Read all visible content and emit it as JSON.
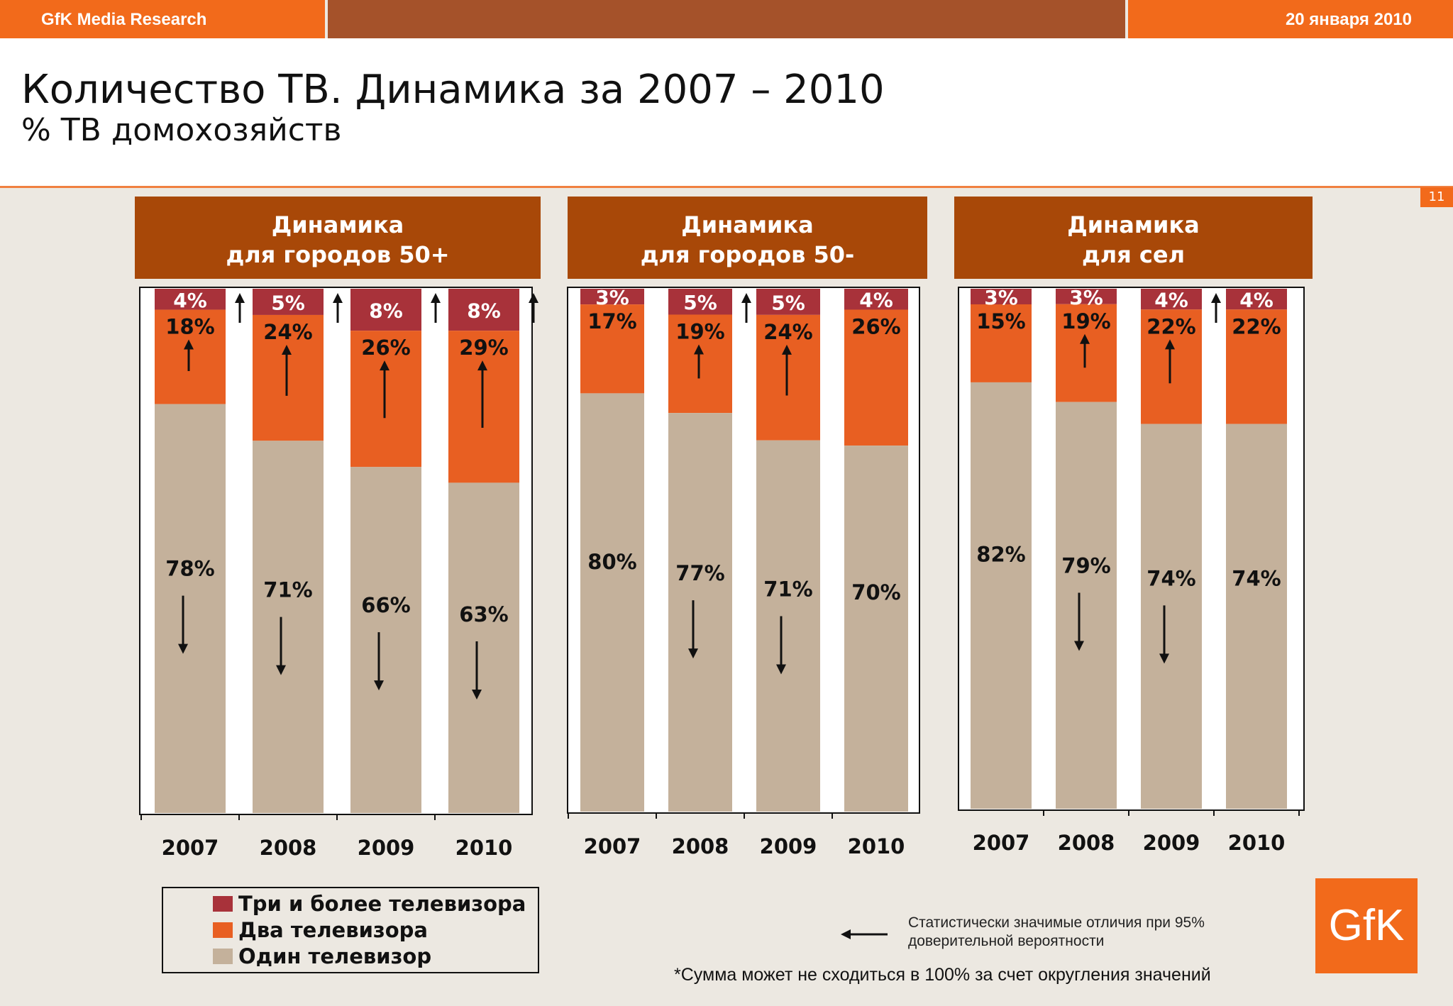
{
  "header": {
    "brand": "GfK Media Research",
    "date": "20 января 2010",
    "title": "Количество ТВ. Динамика за 2007 – 2010",
    "subtitle": "% ТВ домохозяйств",
    "page_number": "11"
  },
  "colors": {
    "three_plus": "#a8323a",
    "two": "#e85f22",
    "one": "#c4b19b",
    "panel_header": "#a84808",
    "accent": "#f26a1b"
  },
  "chart_data": [
    {
      "type": "bar",
      "stacked": true,
      "title": "Динамика для городов 50+",
      "title_lines": [
        "Динамика",
        "для городов 50+"
      ],
      "categories": [
        "2007",
        "2008",
        "2009",
        "2010"
      ],
      "series": [
        {
          "name": "Один телевизор",
          "values": [
            78,
            71,
            66,
            63
          ],
          "labels": [
            "78%",
            "71%",
            "66%",
            "63%"
          ]
        },
        {
          "name": "Два телевизора",
          "values": [
            18,
            24,
            26,
            29
          ],
          "labels": [
            "18%",
            "24%",
            "26%",
            "29%"
          ]
        },
        {
          "name": "Три и более телевизора",
          "values": [
            4,
            5,
            8,
            8
          ],
          "labels": [
            "4%",
            "5%",
            "8%",
            "8%"
          ]
        }
      ],
      "significant": {
        "one_down": [
          true,
          true,
          true,
          true
        ],
        "two_up": [
          true,
          true,
          true,
          true
        ],
        "three_up": [
          true,
          true,
          true,
          true
        ]
      }
    },
    {
      "type": "bar",
      "stacked": true,
      "title": "Динамика для городов 50-",
      "title_lines": [
        "Динамика",
        "для городов 50-"
      ],
      "categories": [
        "2007",
        "2008",
        "2009",
        "2010"
      ],
      "series": [
        {
          "name": "Один телевизор",
          "values": [
            80,
            77,
            71,
            70
          ],
          "labels": [
            "80%",
            "77%",
            "71%",
            "70%"
          ]
        },
        {
          "name": "Два телевизора",
          "values": [
            17,
            19,
            24,
            26
          ],
          "labels": [
            "17%",
            "19%",
            "24%",
            "26%"
          ]
        },
        {
          "name": "Три и более телевизора",
          "values": [
            3,
            5,
            5,
            4
          ],
          "labels": [
            "3%",
            "5%",
            "5%",
            "4%"
          ]
        }
      ],
      "significant": {
        "one_down": [
          false,
          true,
          true,
          false
        ],
        "two_up": [
          false,
          true,
          true,
          false
        ],
        "three_up": [
          false,
          true,
          false,
          false
        ]
      }
    },
    {
      "type": "bar",
      "stacked": true,
      "title": "Динамика для сел",
      "title_lines": [
        "Динамика",
        "для сел"
      ],
      "categories": [
        "2007",
        "2008",
        "2009",
        "2010"
      ],
      "series": [
        {
          "name": "Один телевизор",
          "values": [
            82,
            79,
            74,
            74
          ],
          "labels": [
            "82%",
            "79%",
            "74%",
            "74%"
          ]
        },
        {
          "name": "Два телевизора",
          "values": [
            15,
            19,
            22,
            22
          ],
          "labels": [
            "15%",
            "19%",
            "22%",
            "22%"
          ]
        },
        {
          "name": "Три и более телевизора",
          "values": [
            3,
            3,
            4,
            4
          ],
          "labels": [
            "3%",
            "3%",
            "4%",
            "4%"
          ]
        }
      ],
      "significant": {
        "one_down": [
          false,
          true,
          true,
          false
        ],
        "two_up": [
          false,
          true,
          true,
          false
        ],
        "three_up": [
          false,
          false,
          true,
          false
        ]
      }
    }
  ],
  "legend": {
    "items": [
      {
        "label": "Три и более телевизора",
        "key": "three_plus"
      },
      {
        "label": "Два телевизора",
        "key": "two"
      },
      {
        "label": "Один телевизор",
        "key": "one"
      }
    ]
  },
  "notes": {
    "significance_line1": "Статистически значимые отличия при 95%",
    "significance_line2": "доверительной вероятности",
    "footnote": "*Сумма может не сходиться в 100% за счет округления значений"
  },
  "logo": {
    "text": "GfK"
  }
}
